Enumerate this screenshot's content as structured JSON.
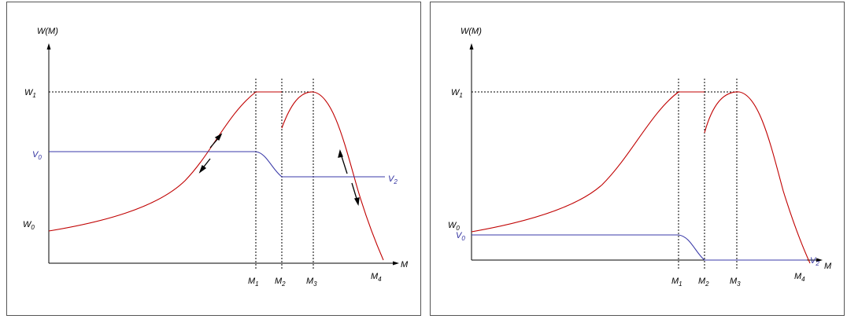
{
  "colors": {
    "axis": "#000000",
    "w_curve": "#c00000",
    "v_curve": "#3a3aa8",
    "guide": "#000000",
    "border": "#555555"
  },
  "panels": [
    {
      "y_axis_label": "W(M)",
      "x_axis_label": "M",
      "y_labels": {
        "w1": "W",
        "w1_sub": "1",
        "v0": "V",
        "v0_sub": "0",
        "w0": "W",
        "w0_sub": "0"
      },
      "x_labels": [
        "M",
        "M",
        "M",
        "M"
      ],
      "x_subs": [
        "1",
        "2",
        "3",
        "4"
      ],
      "v_end_label": "V",
      "v_end_sub": "2",
      "arrows": "present"
    },
    {
      "y_axis_label": "W(M)",
      "x_axis_label": "M",
      "y_labels": {
        "w1": "W",
        "w1_sub": "1",
        "w0": "W",
        "w0_sub": "0",
        "v0": "V",
        "v0_sub": "0"
      },
      "x_labels": [
        "M",
        "M",
        "M",
        "M"
      ],
      "x_subs": [
        "1",
        "2",
        "3",
        "4"
      ],
      "v_end_label": "V",
      "v_end_sub": "2",
      "arrows": "none"
    }
  ]
}
